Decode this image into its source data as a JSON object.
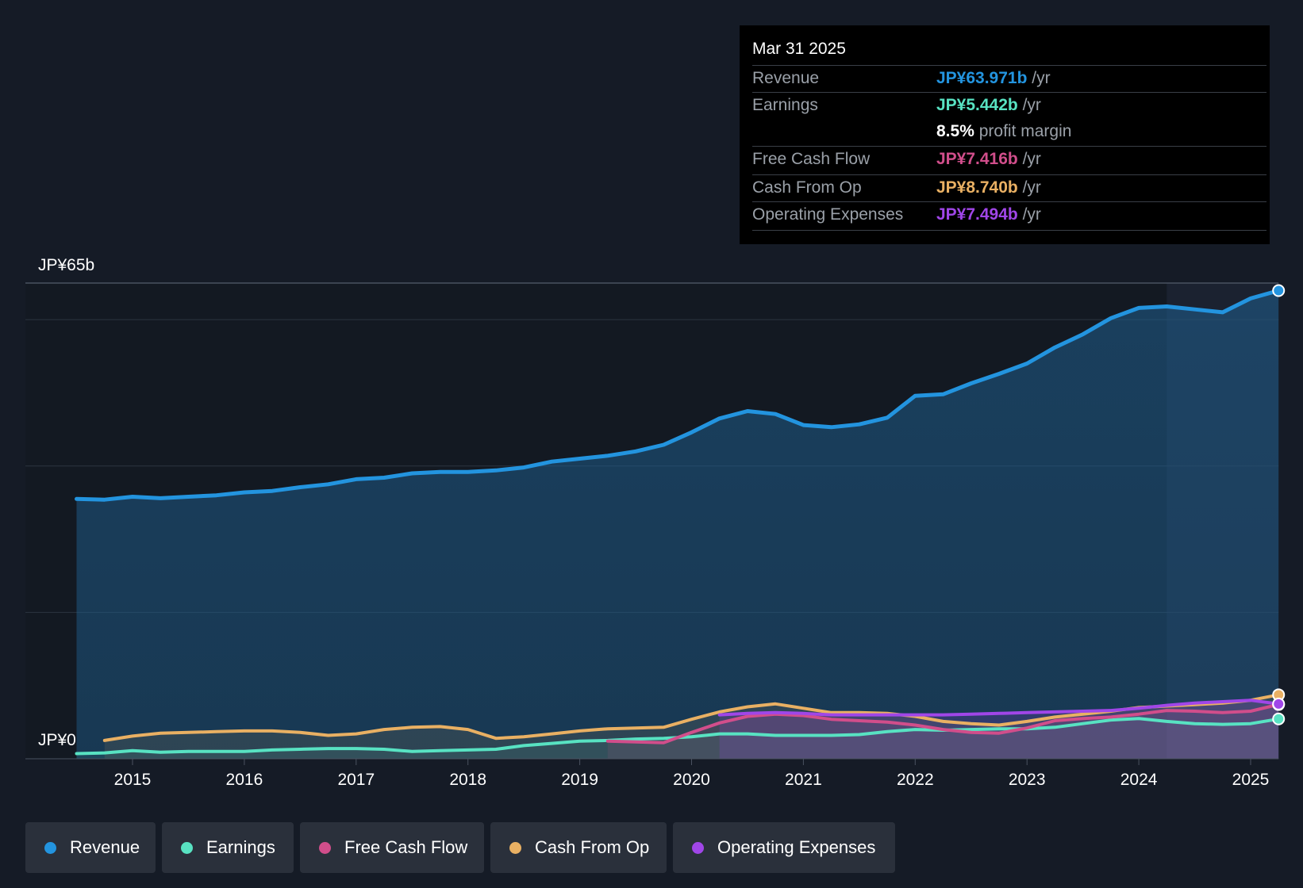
{
  "chart_data": {
    "type": "line",
    "title": "",
    "ylim": [
      0,
      65
    ],
    "y_axis_labels": {
      "top": "JP¥65b",
      "bottom": "JP¥0"
    },
    "gridlines": [
      0,
      20,
      40,
      60,
      65
    ],
    "x_ticks": [
      "2015",
      "2016",
      "2017",
      "2018",
      "2019",
      "2020",
      "2021",
      "2022",
      "2023",
      "2024",
      "2025"
    ],
    "x_tick_values": [
      2015,
      2016,
      2017,
      2018,
      2019,
      2020,
      2021,
      2022,
      2023,
      2024,
      2025
    ],
    "x_range": [
      2014.0,
      2025.25
    ],
    "highlight_start": 2024.25,
    "series": [
      {
        "name": "Revenue",
        "color": "#2394df",
        "points": [
          [
            2014.5,
            35.5
          ],
          [
            2014.75,
            35.4
          ],
          [
            2015,
            35.8
          ],
          [
            2015.25,
            35.6
          ],
          [
            2015.5,
            35.8
          ],
          [
            2015.75,
            36.0
          ],
          [
            2016,
            36.4
          ],
          [
            2016.25,
            36.6
          ],
          [
            2016.5,
            37.1
          ],
          [
            2016.75,
            37.5
          ],
          [
            2017,
            38.2
          ],
          [
            2017.25,
            38.4
          ],
          [
            2017.5,
            39.0
          ],
          [
            2017.75,
            39.2
          ],
          [
            2018,
            39.2
          ],
          [
            2018.25,
            39.4
          ],
          [
            2018.5,
            39.8
          ],
          [
            2018.75,
            40.6
          ],
          [
            2019,
            41.0
          ],
          [
            2019.25,
            41.4
          ],
          [
            2019.5,
            42.0
          ],
          [
            2019.75,
            42.9
          ],
          [
            2020,
            44.6
          ],
          [
            2020.25,
            46.5
          ],
          [
            2020.5,
            47.5
          ],
          [
            2020.75,
            47.1
          ],
          [
            2021,
            45.6
          ],
          [
            2021.25,
            45.3
          ],
          [
            2021.5,
            45.7
          ],
          [
            2021.75,
            46.6
          ],
          [
            2022,
            49.6
          ],
          [
            2022.25,
            49.8
          ],
          [
            2022.5,
            51.3
          ],
          [
            2022.75,
            52.6
          ],
          [
            2023,
            54.0
          ],
          [
            2023.25,
            56.2
          ],
          [
            2023.5,
            58.0
          ],
          [
            2023.75,
            60.2
          ],
          [
            2024,
            61.6
          ],
          [
            2024.25,
            61.8
          ],
          [
            2024.5,
            61.4
          ],
          [
            2024.75,
            61.0
          ],
          [
            2025,
            62.9
          ],
          [
            2025.25,
            63.971
          ]
        ]
      },
      {
        "name": "Earnings",
        "color": "#58e2c2",
        "points": [
          [
            2014.5,
            0.7
          ],
          [
            2014.75,
            0.8
          ],
          [
            2015,
            1.1
          ],
          [
            2015.25,
            0.9
          ],
          [
            2015.5,
            1.0
          ],
          [
            2015.75,
            1.0
          ],
          [
            2016,
            1.0
          ],
          [
            2016.25,
            1.2
          ],
          [
            2016.5,
            1.3
          ],
          [
            2016.75,
            1.4
          ],
          [
            2017,
            1.4
          ],
          [
            2017.25,
            1.3
          ],
          [
            2017.5,
            1.0
          ],
          [
            2017.75,
            1.1
          ],
          [
            2018,
            1.2
          ],
          [
            2018.25,
            1.3
          ],
          [
            2018.5,
            1.8
          ],
          [
            2018.75,
            2.1
          ],
          [
            2019,
            2.4
          ],
          [
            2019.25,
            2.5
          ],
          [
            2019.5,
            2.7
          ],
          [
            2019.75,
            2.8
          ],
          [
            2020,
            3.0
          ],
          [
            2020.25,
            3.4
          ],
          [
            2020.5,
            3.4
          ],
          [
            2020.75,
            3.2
          ],
          [
            2021,
            3.2
          ],
          [
            2021.25,
            3.2
          ],
          [
            2021.5,
            3.3
          ],
          [
            2021.75,
            3.7
          ],
          [
            2022,
            4.0
          ],
          [
            2022.25,
            3.9
          ],
          [
            2022.5,
            4.0
          ],
          [
            2022.75,
            4.1
          ],
          [
            2023,
            4.1
          ],
          [
            2023.25,
            4.3
          ],
          [
            2023.5,
            4.8
          ],
          [
            2023.75,
            5.3
          ],
          [
            2024,
            5.5
          ],
          [
            2024.25,
            5.1
          ],
          [
            2024.5,
            4.8
          ],
          [
            2024.75,
            4.7
          ],
          [
            2025,
            4.8
          ],
          [
            2025.25,
            5.442
          ]
        ]
      },
      {
        "name": "Free Cash Flow",
        "color": "#d14e8b",
        "points": [
          [
            2019.25,
            2.4
          ],
          [
            2019.5,
            2.3
          ],
          [
            2019.75,
            2.2
          ],
          [
            2020,
            3.6
          ],
          [
            2020.25,
            4.9
          ],
          [
            2020.5,
            5.8
          ],
          [
            2020.75,
            6.1
          ],
          [
            2021,
            5.9
          ],
          [
            2021.25,
            5.4
          ],
          [
            2021.5,
            5.2
          ],
          [
            2021.75,
            5.0
          ],
          [
            2022,
            4.6
          ],
          [
            2022.25,
            4.0
          ],
          [
            2022.5,
            3.6
          ],
          [
            2022.75,
            3.5
          ],
          [
            2023,
            4.2
          ],
          [
            2023.25,
            5.2
          ],
          [
            2023.5,
            5.5
          ],
          [
            2023.75,
            5.7
          ],
          [
            2024,
            6.1
          ],
          [
            2024.25,
            6.6
          ],
          [
            2024.5,
            6.5
          ],
          [
            2024.75,
            6.3
          ],
          [
            2025,
            6.5
          ],
          [
            2025.25,
            7.416
          ]
        ]
      },
      {
        "name": "Cash From Op",
        "color": "#e9b063",
        "points": [
          [
            2014.75,
            2.5
          ],
          [
            2015,
            3.1
          ],
          [
            2015.25,
            3.5
          ],
          [
            2015.5,
            3.6
          ],
          [
            2015.75,
            3.7
          ],
          [
            2016,
            3.8
          ],
          [
            2016.25,
            3.8
          ],
          [
            2016.5,
            3.6
          ],
          [
            2016.75,
            3.2
          ],
          [
            2017,
            3.4
          ],
          [
            2017.25,
            4.0
          ],
          [
            2017.5,
            4.3
          ],
          [
            2017.75,
            4.4
          ],
          [
            2018,
            4.0
          ],
          [
            2018.25,
            2.8
          ],
          [
            2018.5,
            3.0
          ],
          [
            2018.75,
            3.4
          ],
          [
            2019,
            3.8
          ],
          [
            2019.25,
            4.1
          ],
          [
            2019.5,
            4.2
          ],
          [
            2019.75,
            4.3
          ],
          [
            2020,
            5.4
          ],
          [
            2020.25,
            6.4
          ],
          [
            2020.5,
            7.1
          ],
          [
            2020.75,
            7.5
          ],
          [
            2021,
            6.9
          ],
          [
            2021.25,
            6.3
          ],
          [
            2021.5,
            6.3
          ],
          [
            2021.75,
            6.2
          ],
          [
            2022,
            5.8
          ],
          [
            2022.25,
            5.1
          ],
          [
            2022.5,
            4.8
          ],
          [
            2022.75,
            4.6
          ],
          [
            2023,
            5.1
          ],
          [
            2023.25,
            5.7
          ],
          [
            2023.5,
            6.1
          ],
          [
            2023.75,
            6.5
          ],
          [
            2024,
            7.0
          ],
          [
            2024.25,
            7.2
          ],
          [
            2024.5,
            7.4
          ],
          [
            2024.75,
            7.6
          ],
          [
            2025,
            8.0
          ],
          [
            2025.25,
            8.74
          ]
        ]
      },
      {
        "name": "Operating Expenses",
        "color": "#a046e8",
        "points": [
          [
            2020.25,
            6.0
          ],
          [
            2020.5,
            6.2
          ],
          [
            2020.75,
            6.3
          ],
          [
            2021,
            6.2
          ],
          [
            2021.25,
            6.0
          ],
          [
            2021.5,
            6.0
          ],
          [
            2021.75,
            6.0
          ],
          [
            2022,
            6.0
          ],
          [
            2022.25,
            6.0
          ],
          [
            2022.5,
            6.1
          ],
          [
            2022.75,
            6.2
          ],
          [
            2023,
            6.3
          ],
          [
            2023.25,
            6.4
          ],
          [
            2023.5,
            6.5
          ],
          [
            2023.75,
            6.6
          ],
          [
            2024,
            6.9
          ],
          [
            2024.25,
            7.3
          ],
          [
            2024.5,
            7.6
          ],
          [
            2024.75,
            7.8
          ],
          [
            2025,
            8.0
          ],
          [
            2025.25,
            7.494
          ]
        ]
      }
    ]
  },
  "tooltip": {
    "date": "Mar 31 2025",
    "rows": [
      {
        "label": "Revenue",
        "value": "JP¥63.971b",
        "unit": "/yr",
        "color": "#2394df"
      },
      {
        "label": "Earnings",
        "value": "JP¥5.442b",
        "unit": "/yr",
        "color": "#58e2c2"
      },
      {
        "label": "",
        "value": "8.5%",
        "unit": "profit margin",
        "color": "#ffffff"
      },
      {
        "label": "Free Cash Flow",
        "value": "JP¥7.416b",
        "unit": "/yr",
        "color": "#d14e8b"
      },
      {
        "label": "Cash From Op",
        "value": "JP¥8.740b",
        "unit": "/yr",
        "color": "#e9b063"
      },
      {
        "label": "Operating Expenses",
        "value": "JP¥7.494b",
        "unit": "/yr",
        "color": "#a046e8"
      }
    ]
  },
  "legend": [
    {
      "label": "Revenue",
      "color": "#2394df"
    },
    {
      "label": "Earnings",
      "color": "#58e2c2"
    },
    {
      "label": "Free Cash Flow",
      "color": "#d14e8b"
    },
    {
      "label": "Cash From Op",
      "color": "#e9b063"
    },
    {
      "label": "Operating Expenses",
      "color": "#a046e8"
    }
  ]
}
